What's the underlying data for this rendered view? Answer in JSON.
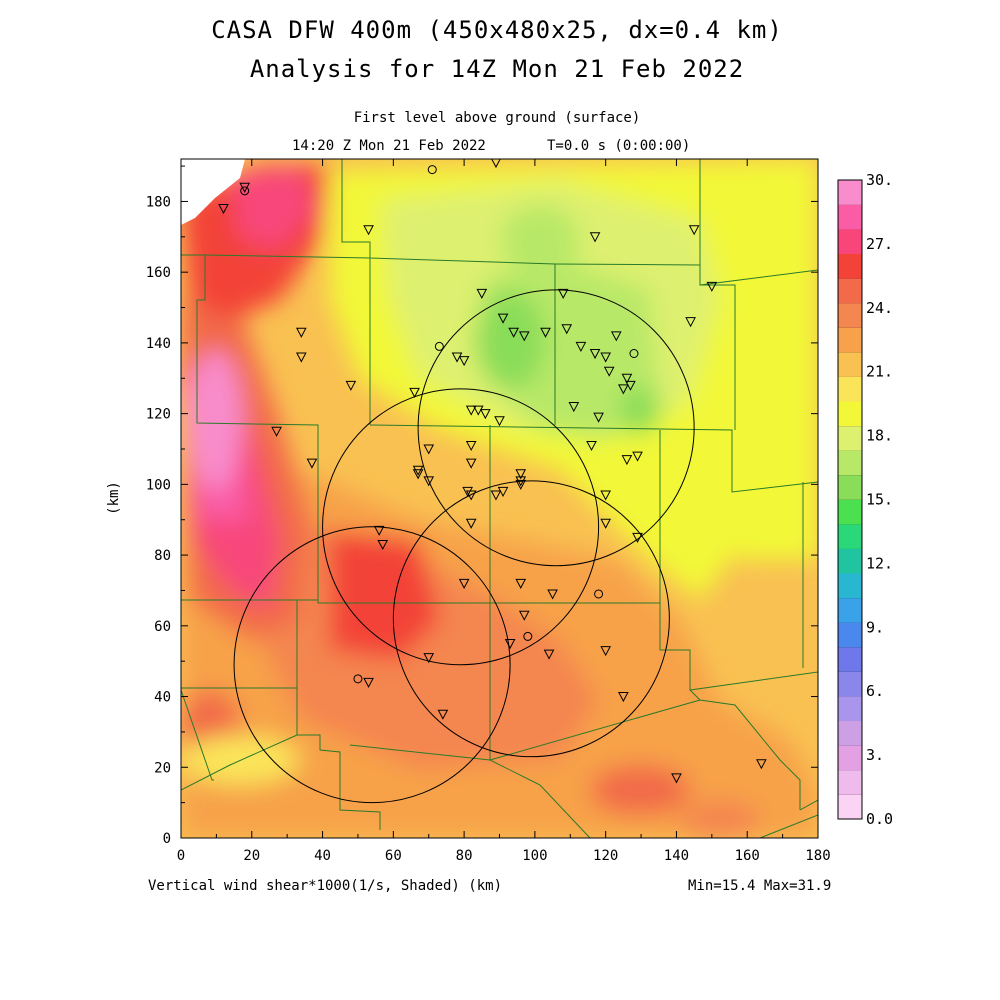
{
  "title_line1": "CASA DFW 400m (450x480x25, dx=0.4 km)",
  "title_line2": "Analysis for 14Z Mon 21 Feb 2022",
  "subtitle_line1": "First level above ground (surface)",
  "subtitle_time": "14:20 Z Mon 21 Feb 2022",
  "subtitle_t": "T=0.0 s (0:00:00)",
  "footer_left": "Vertical wind shear*1000(1/s, Shaded)  (km)",
  "footer_right": "Min=15.4 Max=31.9",
  "chart_data": {
    "type": "heatmap",
    "variable": "Vertical wind shear*1000 (1/s)",
    "xlabel": "(km)",
    "ylabel": "(km)",
    "xlim": [
      0,
      180
    ],
    "ylim": [
      0,
      192
    ],
    "x_ticks": [
      "0",
      "20",
      "40",
      "60",
      "80",
      "100",
      "120",
      "140",
      "160",
      "180"
    ],
    "y_ticks": [
      "0",
      "20",
      "40",
      "60",
      "80",
      "100",
      "120",
      "140",
      "160",
      "180"
    ],
    "colorbar": {
      "min": 0,
      "max": 30,
      "step": 1.5,
      "labels": [
        "0.0",
        "3.",
        "6.",
        "9.",
        "12.",
        "15.",
        "18.",
        "21.",
        "24.",
        "27.",
        "30."
      ],
      "colors": [
        "#fbd3f5",
        "#efbbec",
        "#e3a0e3",
        "#cda0e6",
        "#a996ec",
        "#8a86ea",
        "#6e78ea",
        "#4a88ee",
        "#3aa2e8",
        "#28b6d0",
        "#20c4a0",
        "#2ad87a",
        "#4ae050",
        "#8add58",
        "#b8e868",
        "#def070",
        "#f2f838",
        "#fae55a",
        "#f9c152",
        "#f7a24a",
        "#f48650",
        "#f26a4a",
        "#f34238",
        "#f8467a",
        "#fa5ca6",
        "#f88ccc"
      ]
    },
    "min": 15.4,
    "max": 31.9,
    "radar_rings_km": [
      {
        "center": [
          106,
          116
        ],
        "radius": 39
      },
      {
        "center": [
          79,
          88
        ],
        "radius": 39
      },
      {
        "center": [
          99,
          62
        ],
        "radius": 39
      },
      {
        "center": [
          54,
          49
        ],
        "radius": 39
      }
    ],
    "stations_triangle": [
      [
        12,
        178
      ],
      [
        18,
        184
      ],
      [
        53,
        172
      ],
      [
        89,
        191
      ],
      [
        85,
        154
      ],
      [
        117,
        170
      ],
      [
        145,
        172
      ],
      [
        150,
        156
      ],
      [
        34,
        143
      ],
      [
        34,
        136
      ],
      [
        48,
        128
      ],
      [
        91,
        147
      ],
      [
        94,
        143
      ],
      [
        97,
        142
      ],
      [
        103,
        143
      ],
      [
        108,
        154
      ],
      [
        109,
        144
      ],
      [
        113,
        139
      ],
      [
        117,
        137
      ],
      [
        120,
        136
      ],
      [
        121,
        132
      ],
      [
        123,
        142
      ],
      [
        125,
        127
      ],
      [
        126,
        130
      ],
      [
        127,
        128
      ],
      [
        144,
        146
      ],
      [
        78,
        136
      ],
      [
        80,
        135
      ],
      [
        66,
        126
      ],
      [
        82,
        121
      ],
      [
        84,
        121
      ],
      [
        86,
        120
      ],
      [
        90,
        118
      ],
      [
        111,
        122
      ],
      [
        118,
        119
      ],
      [
        27,
        115
      ],
      [
        37,
        106
      ],
      [
        70,
        110
      ],
      [
        82,
        111
      ],
      [
        82,
        106
      ],
      [
        67,
        104
      ],
      [
        67,
        103
      ],
      [
        70,
        101
      ],
      [
        116,
        111
      ],
      [
        126,
        107
      ],
      [
        129,
        108
      ],
      [
        96,
        103
      ],
      [
        96,
        101
      ],
      [
        96,
        100
      ],
      [
        81,
        98
      ],
      [
        82,
        97
      ],
      [
        89,
        97
      ],
      [
        91,
        98
      ],
      [
        120,
        97
      ],
      [
        120,
        89
      ],
      [
        82,
        89
      ],
      [
        129,
        85
      ],
      [
        56,
        87
      ],
      [
        57,
        83
      ],
      [
        80,
        72
      ],
      [
        96,
        72
      ],
      [
        105,
        69
      ],
      [
        97,
        63
      ],
      [
        93,
        55
      ],
      [
        70,
        51
      ],
      [
        53,
        44
      ],
      [
        120,
        53
      ],
      [
        104,
        52
      ],
      [
        125,
        40
      ],
      [
        74,
        35
      ],
      [
        140,
        17
      ],
      [
        164,
        21
      ]
    ],
    "stations_circle": [
      [
        71,
        189
      ],
      [
        18,
        183
      ],
      [
        73,
        139
      ],
      [
        128,
        137
      ],
      [
        118,
        69
      ],
      [
        98,
        57
      ],
      [
        50,
        45
      ]
    ]
  }
}
